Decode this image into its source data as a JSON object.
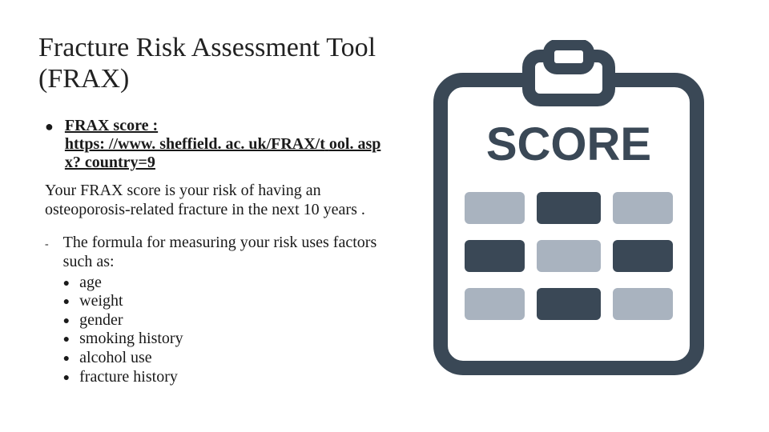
{
  "title": "Fracture Risk Assessment Tool (FRAX)",
  "score_label": "FRAX score :",
  "score_url_line1": "https: //www. sheffield. ac. uk/FRAX/t",
  "score_url_line2": "ool. aspx? country=9",
  "description": "Your FRAX score is your risk of having an osteoporosis-related fracture in the next 10 years .",
  "formula_intro": "The formula for measuring your risk uses factors such as:",
  "factors": [
    "age",
    "weight",
    "gender",
    "smoking history",
    "alcohol use",
    "fracture history"
  ],
  "icon": {
    "word": "SCORE",
    "colors": {
      "outline": "#3a4856",
      "paper": "#ffffff",
      "bar_light": "#a9b3bf",
      "bar_dark": "#3a4856",
      "text": "#3a4856"
    },
    "stroke_width": 18
  },
  "style": {
    "bg": "#ffffff",
    "text_color": "#1a1a1a",
    "title_fontsize": 34,
    "body_fontsize": 20
  }
}
